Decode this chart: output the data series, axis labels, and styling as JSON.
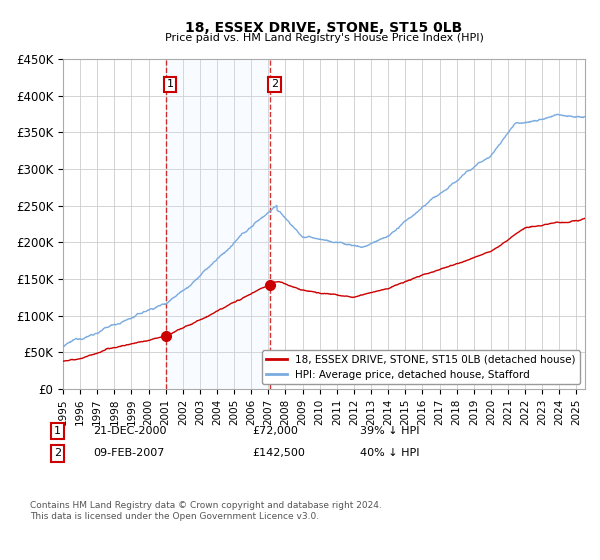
{
  "title": "18, ESSEX DRIVE, STONE, ST15 0LB",
  "subtitle": "Price paid vs. HM Land Registry's House Price Index (HPI)",
  "ylim": [
    0,
    450000
  ],
  "yticks": [
    0,
    50000,
    100000,
    150000,
    200000,
    250000,
    300000,
    350000,
    400000,
    450000
  ],
  "ytick_labels": [
    "£0",
    "£50K",
    "£100K",
    "£150K",
    "£200K",
    "£250K",
    "£300K",
    "£350K",
    "£400K",
    "£450K"
  ],
  "transaction1_date": 2001.0,
  "transaction1_price": 72000,
  "transaction2_date": 2007.1,
  "transaction2_price": 142500,
  "legend_red": "18, ESSEX DRIVE, STONE, ST15 0LB (detached house)",
  "legend_blue": "HPI: Average price, detached house, Stafford",
  "footnote": "Contains HM Land Registry data © Crown copyright and database right 2024.\nThis data is licensed under the Open Government Licence v3.0.",
  "red_color": "#cc0000",
  "blue_color": "#7aabe0",
  "vline_color": "#cc0000",
  "span_color": "#ddeeff",
  "background_color": "#ffffff",
  "grid_color": "#cccccc",
  "xmin": 1995.0,
  "xmax": 2025.5
}
